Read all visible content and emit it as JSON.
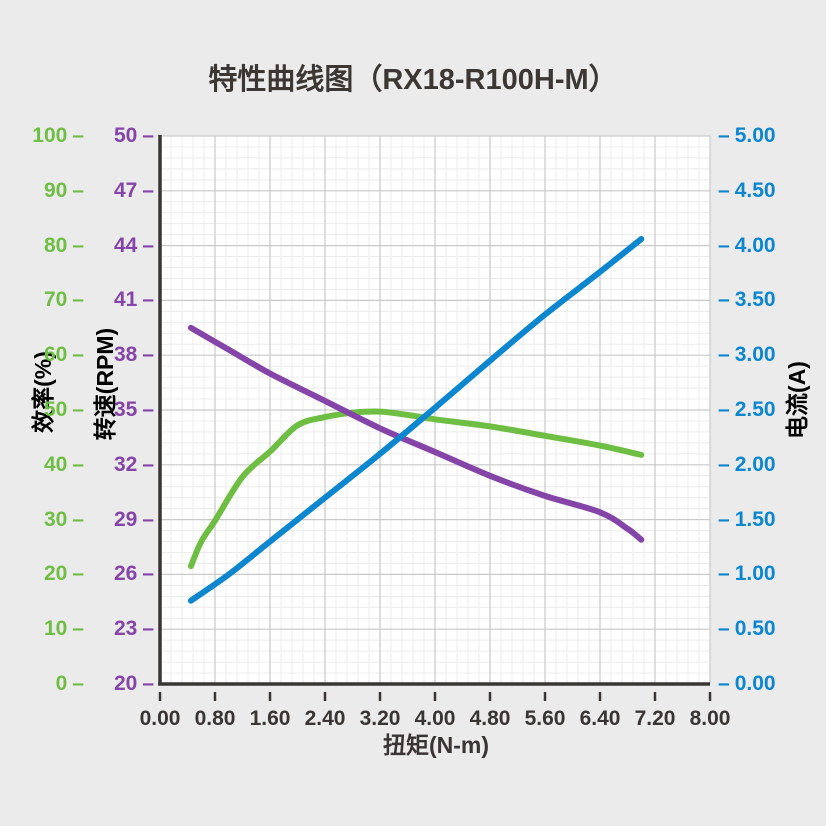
{
  "chart_data": {
    "type": "line",
    "title": "特性曲线图（RX18-R100H-M）",
    "xlabel": "扭矩(N-m)",
    "x_range": [
      0,
      8
    ],
    "x_ticks": [
      "0.00",
      "0.80",
      "1.60",
      "2.40",
      "3.20",
      "4.00",
      "4.80",
      "5.60",
      "6.40",
      "7.20",
      "8.00"
    ],
    "grid": {
      "major_divisions": 10,
      "minor_per_major": 5
    },
    "legend": "none",
    "axes": [
      {
        "id": "efficiency",
        "label": "效率(%)",
        "color": "#6fbe44",
        "range": [
          0,
          100
        ],
        "ticks": [
          "100",
          "90",
          "80",
          "70",
          "60",
          "50",
          "40",
          "30",
          "20",
          "10",
          "0"
        ]
      },
      {
        "id": "rpm",
        "label": "转速(RPM)",
        "color": "#8444a8",
        "range": [
          20,
          50
        ],
        "ticks": [
          "50",
          "47",
          "44",
          "41",
          "38",
          "35",
          "32",
          "29",
          "26",
          "23",
          "20"
        ]
      },
      {
        "id": "current",
        "label": "电流(A)",
        "color": "#0d86d0",
        "range": [
          0,
          5
        ],
        "ticks": [
          "5.00",
          "4.50",
          "4.00",
          "3.50",
          "3.00",
          "2.50",
          "2.00",
          "1.50",
          "1.00",
          "0.50",
          "0.00"
        ]
      }
    ],
    "series": [
      {
        "name": "效率",
        "axis": "efficiency",
        "color": "#6fbe44",
        "points": [
          [
            0.45,
            21.5
          ],
          [
            0.6,
            26.0
          ],
          [
            0.8,
            29.8
          ],
          [
            1.2,
            37.8
          ],
          [
            1.6,
            42.4
          ],
          [
            2.0,
            47.2
          ],
          [
            2.4,
            48.7
          ],
          [
            2.8,
            49.5
          ],
          [
            3.2,
            49.7
          ],
          [
            3.6,
            49.1
          ],
          [
            4.0,
            48.3
          ],
          [
            4.8,
            47.0
          ],
          [
            5.6,
            45.3
          ],
          [
            6.4,
            43.5
          ],
          [
            7.0,
            41.8
          ]
        ]
      },
      {
        "name": "转速",
        "axis": "rpm",
        "color": "#8444a8",
        "points": [
          [
            0.45,
            39.5
          ],
          [
            1.0,
            38.3
          ],
          [
            1.6,
            37.0
          ],
          [
            2.4,
            35.5
          ],
          [
            3.2,
            34.0
          ],
          [
            4.0,
            32.7
          ],
          [
            4.8,
            31.4
          ],
          [
            5.6,
            30.3
          ],
          [
            6.4,
            29.4
          ],
          [
            6.8,
            28.5
          ],
          [
            7.0,
            27.9
          ]
        ]
      },
      {
        "name": "电流",
        "axis": "current",
        "color": "#0d86d0",
        "points": [
          [
            0.45,
            0.76
          ],
          [
            1.0,
            1.0
          ],
          [
            1.6,
            1.3
          ],
          [
            2.4,
            1.7
          ],
          [
            3.2,
            2.1
          ],
          [
            4.0,
            2.52
          ],
          [
            4.8,
            2.95
          ],
          [
            5.6,
            3.37
          ],
          [
            6.4,
            3.76
          ],
          [
            7.0,
            4.06
          ]
        ]
      }
    ],
    "colors": {
      "background": "#ebebeb",
      "plot_background": "#ffffff",
      "grid_major": "#c9c9c9",
      "grid_minor": "#ececec",
      "axis_dark": "#3a3433"
    }
  }
}
